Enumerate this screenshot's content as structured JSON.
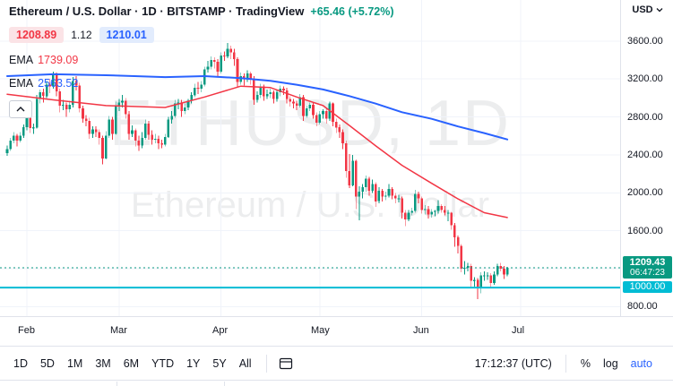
{
  "header": {
    "title": "Ethereum / U.S. Dollar · 1D · BITSTAMP · TradingView",
    "change": "+65.46 (+5.72%)",
    "sell_price": "1208.89",
    "spread": "1.12",
    "buy_price": "1210.01",
    "indicators": [
      {
        "label": "EMA",
        "value": "1739.09",
        "color": "#f23645"
      },
      {
        "label": "EMA",
        "value": "2563.52",
        "color": "#2962ff"
      }
    ]
  },
  "watermark": {
    "line1": "ETHUSD, 1D",
    "line2": "Ethereum / U.S. Dollar"
  },
  "price_axis": {
    "currency": "USD",
    "labels": [
      "3600.00",
      "3200.00",
      "2800.00",
      "2400.00",
      "2000.00",
      "1600.00",
      "1200.00",
      "800.00"
    ],
    "last_price_label": "1209.43",
    "countdown": "06:47:23",
    "hline_label": "1000.00"
  },
  "time_axis": {
    "months": [
      "Feb",
      "Mar",
      "Apr",
      "May",
      "Jun",
      "Jul"
    ]
  },
  "toolbar": {
    "ranges": [
      "1D",
      "5D",
      "1M",
      "3M",
      "6M",
      "YTD",
      "1Y",
      "5Y",
      "All"
    ],
    "clock": "17:12:37 (UTC)",
    "percent": "%",
    "log": "log",
    "auto": "auto"
  },
  "colors": {
    "up": "#089981",
    "down": "#f23645",
    "ema_fast": "#f23645",
    "ema_slow": "#2962ff",
    "hline": "#00bcd4",
    "accent_blue": "#2962ff",
    "text": "#131722",
    "muted": "#787b86",
    "grid": "#f0f3fa",
    "border": "#e0e3eb"
  },
  "chart_data": {
    "type": "candlestick",
    "symbol": "ETHUSD",
    "exchange": "BITSTAMP",
    "timeframe": "1D",
    "price_range": [
      680,
      3750
    ],
    "grid_prices": [
      3600,
      3200,
      2800,
      2400,
      2000,
      1600,
      1200,
      800
    ],
    "month_start_days": {
      "Feb": 6,
      "Mar": 34,
      "Apr": 65,
      "May": 95,
      "Jun": 126,
      "Jul": 156
    },
    "candles": [
      [
        2420,
        2500,
        2390,
        2460
      ],
      [
        2460,
        2580,
        2440,
        2550
      ],
      [
        2550,
        2640,
        2520,
        2600
      ],
      [
        2600,
        2620,
        2490,
        2550
      ],
      [
        2550,
        2640,
        2530,
        2600
      ],
      [
        2600,
        2720,
        2580,
        2690
      ],
      [
        2690,
        2820,
        2660,
        2790
      ],
      [
        2790,
        2810,
        2630,
        2680
      ],
      [
        2680,
        2730,
        2620,
        2690
      ],
      [
        2690,
        3030,
        2680,
        2990
      ],
      [
        2990,
        3090,
        2940,
        3060
      ],
      [
        3060,
        3100,
        2950,
        3020
      ],
      [
        3020,
        3180,
        3000,
        3140
      ],
      [
        3140,
        3200,
        3050,
        3120
      ],
      [
        3120,
        3280,
        3100,
        3240
      ],
      [
        3240,
        3270,
        3020,
        3070
      ],
      [
        3070,
        3100,
        2850,
        2920
      ],
      [
        2920,
        2980,
        2870,
        2930
      ],
      [
        2930,
        2950,
        2800,
        2880
      ],
      [
        2880,
        2970,
        2850,
        2930
      ],
      [
        2930,
        3220,
        2900,
        3180
      ],
      [
        3180,
        3230,
        3080,
        3130
      ],
      [
        3130,
        3160,
        2850,
        2890
      ],
      [
        2890,
        2920,
        2740,
        2780
      ],
      [
        2780,
        2820,
        2700,
        2760
      ],
      [
        2760,
        2790,
        2570,
        2620
      ],
      [
        2620,
        2700,
        2580,
        2670
      ],
      [
        2670,
        2700,
        2590,
        2640
      ],
      [
        2640,
        2670,
        2510,
        2580
      ],
      [
        2580,
        2600,
        2300,
        2360
      ],
      [
        2360,
        2650,
        2350,
        2600
      ],
      [
        2600,
        2810,
        2580,
        2770
      ],
      [
        2770,
        2800,
        2560,
        2620
      ],
      [
        2620,
        2960,
        2610,
        2920
      ],
      [
        2920,
        2990,
        2860,
        2950
      ],
      [
        2950,
        3030,
        2900,
        2970
      ],
      [
        2970,
        3000,
        2780,
        2830
      ],
      [
        2830,
        2860,
        2560,
        2620
      ],
      [
        2620,
        2710,
        2590,
        2660
      ],
      [
        2660,
        2680,
        2490,
        2550
      ],
      [
        2550,
        2600,
        2440,
        2500
      ],
      [
        2500,
        2640,
        2470,
        2580
      ],
      [
        2580,
        2770,
        2560,
        2730
      ],
      [
        2730,
        2760,
        2560,
        2610
      ],
      [
        2610,
        2660,
        2510,
        2560
      ],
      [
        2560,
        2620,
        2520,
        2570
      ],
      [
        2570,
        2600,
        2460,
        2520
      ],
      [
        2520,
        2560,
        2470,
        2510
      ],
      [
        2510,
        2620,
        2490,
        2590
      ],
      [
        2590,
        2800,
        2580,
        2770
      ],
      [
        2770,
        2860,
        2730,
        2810
      ],
      [
        2810,
        2980,
        2790,
        2940
      ],
      [
        2940,
        2990,
        2880,
        2950
      ],
      [
        2950,
        2980,
        2800,
        2860
      ],
      [
        2860,
        2940,
        2830,
        2900
      ],
      [
        2900,
        2990,
        2870,
        2970
      ],
      [
        2970,
        3060,
        2940,
        3030
      ],
      [
        3030,
        3150,
        3010,
        3110
      ],
      [
        3110,
        3170,
        3040,
        3100
      ],
      [
        3100,
        3180,
        3060,
        3140
      ],
      [
        3140,
        3330,
        3120,
        3300
      ],
      [
        3300,
        3390,
        3270,
        3330
      ],
      [
        3330,
        3440,
        3300,
        3400
      ],
      [
        3400,
        3430,
        3310,
        3380
      ],
      [
        3380,
        3410,
        3230,
        3280
      ],
      [
        3280,
        3480,
        3260,
        3450
      ],
      [
        3450,
        3490,
        3390,
        3440
      ],
      [
        3440,
        3580,
        3420,
        3520
      ],
      [
        3520,
        3550,
        3410,
        3480
      ],
      [
        3480,
        3520,
        3340,
        3410
      ],
      [
        3410,
        3430,
        3110,
        3170
      ],
      [
        3170,
        3270,
        3140,
        3230
      ],
      [
        3230,
        3260,
        3130,
        3200
      ],
      [
        3200,
        3290,
        3170,
        3260
      ],
      [
        3260,
        3280,
        3140,
        3200
      ],
      [
        3200,
        3230,
        2930,
        2980
      ],
      [
        2980,
        3070,
        2950,
        3030
      ],
      [
        3030,
        3150,
        3000,
        3120
      ],
      [
        3120,
        3140,
        2970,
        3020
      ],
      [
        3020,
        3090,
        2990,
        3040
      ],
      [
        3040,
        3100,
        3000,
        3060
      ],
      [
        3060,
        3080,
        2940,
        2990
      ],
      [
        2990,
        3090,
        2960,
        3060
      ],
      [
        3060,
        3130,
        3020,
        3100
      ],
      [
        3100,
        3120,
        3030,
        3080
      ],
      [
        3080,
        3110,
        2940,
        2990
      ],
      [
        2990,
        3020,
        2910,
        2960
      ],
      [
        2960,
        2990,
        2890,
        2940
      ],
      [
        2940,
        2970,
        2870,
        2920
      ],
      [
        2920,
        3040,
        2900,
        3010
      ],
      [
        3010,
        3030,
        2760,
        2810
      ],
      [
        2810,
        2920,
        2790,
        2890
      ],
      [
        2890,
        2950,
        2860,
        2930
      ],
      [
        2930,
        2950,
        2780,
        2820
      ],
      [
        2820,
        2850,
        2700,
        2740
      ],
      [
        2740,
        2860,
        2720,
        2830
      ],
      [
        2830,
        2880,
        2780,
        2860
      ],
      [
        2860,
        2890,
        2730,
        2780
      ],
      [
        2780,
        2960,
        2760,
        2940
      ],
      [
        2940,
        2950,
        2700,
        2750
      ],
      [
        2750,
        2780,
        2630,
        2690
      ],
      [
        2690,
        2720,
        2580,
        2640
      ],
      [
        2640,
        2670,
        2460,
        2520
      ],
      [
        2520,
        2550,
        2160,
        2230
      ],
      [
        2230,
        2410,
        2050,
        2080
      ],
      [
        2080,
        2400,
        2070,
        2340
      ],
      [
        2340,
        2350,
        1830,
        1960
      ],
      [
        1960,
        2070,
        1710,
        2010
      ],
      [
        2010,
        2090,
        1940,
        2060
      ],
      [
        2060,
        2180,
        2010,
        2150
      ],
      [
        2150,
        2170,
        1970,
        2020
      ],
      [
        2020,
        2140,
        2000,
        2090
      ],
      [
        2090,
        2110,
        1850,
        1910
      ],
      [
        1910,
        2060,
        1890,
        2020
      ],
      [
        2020,
        2040,
        1910,
        1960
      ],
      [
        1960,
        2010,
        1920,
        1970
      ],
      [
        1970,
        2090,
        1950,
        2040
      ],
      [
        2040,
        2060,
        1930,
        1970
      ],
      [
        1970,
        2000,
        1890,
        1940
      ],
      [
        1940,
        1980,
        1900,
        1940
      ],
      [
        1940,
        1960,
        1730,
        1790
      ],
      [
        1790,
        1820,
        1650,
        1720
      ],
      [
        1720,
        1820,
        1700,
        1790
      ],
      [
        1790,
        1840,
        1760,
        1810
      ],
      [
        1810,
        2030,
        1790,
        1990
      ],
      [
        1990,
        2010,
        1890,
        1940
      ],
      [
        1940,
        1960,
        1780,
        1820
      ],
      [
        1820,
        1870,
        1770,
        1830
      ],
      [
        1830,
        1860,
        1730,
        1770
      ],
      [
        1770,
        1830,
        1740,
        1800
      ],
      [
        1800,
        1820,
        1750,
        1810
      ],
      [
        1810,
        1920,
        1780,
        1860
      ],
      [
        1860,
        1880,
        1790,
        1820
      ],
      [
        1820,
        1860,
        1760,
        1790
      ],
      [
        1790,
        1820,
        1700,
        1790
      ],
      [
        1790,
        1800,
        1610,
        1660
      ],
      [
        1660,
        1680,
        1430,
        1530
      ],
      [
        1530,
        1550,
        1360,
        1440
      ],
      [
        1440,
        1460,
        1160,
        1200
      ],
      [
        1200,
        1280,
        1140,
        1210
      ],
      [
        1210,
        1260,
        1170,
        1230
      ],
      [
        1230,
        1250,
        1010,
        1070
      ],
      [
        1070,
        1110,
        1010,
        1080
      ],
      [
        1080,
        1100,
        880,
        990
      ],
      [
        990,
        1160,
        940,
        1130
      ],
      [
        1130,
        1170,
        1070,
        1130
      ],
      [
        1130,
        1160,
        1080,
        1130
      ],
      [
        1130,
        1150,
        1000,
        1050
      ],
      [
        1050,
        1170,
        1030,
        1140
      ],
      [
        1140,
        1250,
        1120,
        1230
      ],
      [
        1230,
        1260,
        1170,
        1200
      ],
      [
        1200,
        1230,
        1090,
        1140
      ],
      [
        1140,
        1220,
        1120,
        1209
      ]
    ],
    "ema_lines": [
      {
        "name": "EMA fast",
        "last": 1739.09,
        "color": "#f23645",
        "width": 1.5,
        "points": [
          [
            0,
            3040
          ],
          [
            14,
            2980
          ],
          [
            30,
            2920
          ],
          [
            48,
            2900
          ],
          [
            60,
            3010
          ],
          [
            71,
            3125
          ],
          [
            80,
            3110
          ],
          [
            88,
            3010
          ],
          [
            96,
            2920
          ],
          [
            104,
            2710
          ],
          [
            112,
            2495
          ],
          [
            120,
            2290
          ],
          [
            129,
            2100
          ],
          [
            137,
            1935
          ],
          [
            145,
            1790
          ],
          [
            152,
            1739
          ]
        ]
      },
      {
        "name": "EMA slow",
        "last": 2563.52,
        "color": "#2962ff",
        "width": 2,
        "points": [
          [
            0,
            3230
          ],
          [
            14,
            3250
          ],
          [
            30,
            3240
          ],
          [
            48,
            3220
          ],
          [
            60,
            3230
          ],
          [
            71,
            3210
          ],
          [
            80,
            3180
          ],
          [
            88,
            3140
          ],
          [
            96,
            3090
          ],
          [
            104,
            3020
          ],
          [
            112,
            2940
          ],
          [
            120,
            2850
          ],
          [
            129,
            2780
          ],
          [
            137,
            2700
          ],
          [
            145,
            2630
          ],
          [
            152,
            2563
          ]
        ]
      }
    ],
    "horizontal_line": {
      "price": 1000,
      "color": "#00bcd4"
    },
    "last_price": {
      "price": 1209.43,
      "color": "#089981"
    }
  }
}
